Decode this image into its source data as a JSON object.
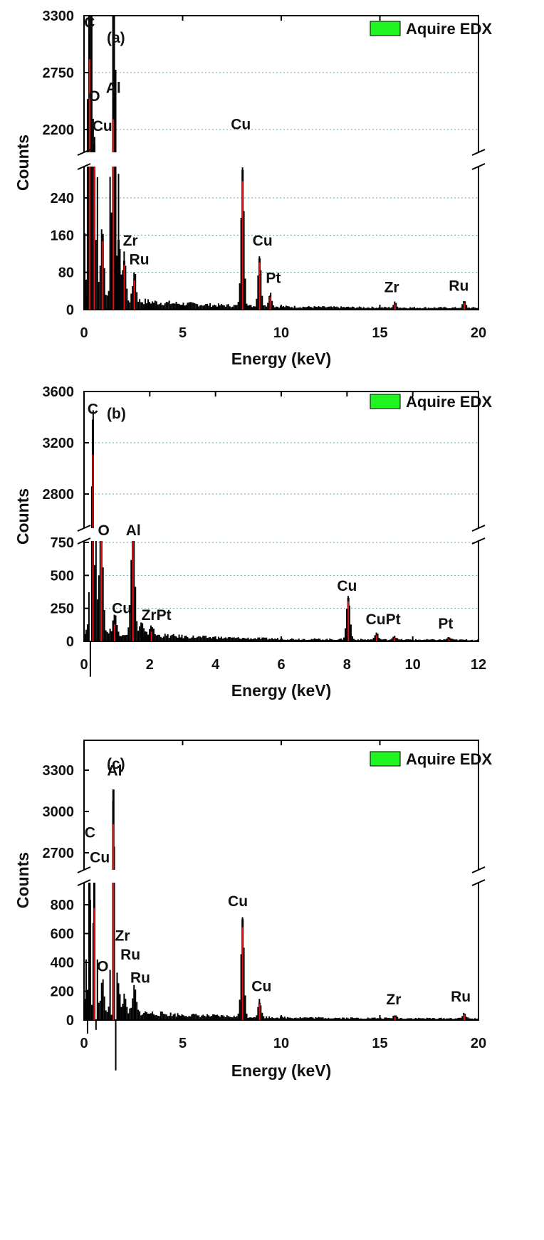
{
  "chart_data": [
    {
      "type": "bar",
      "panel_label": "(a)",
      "legend": [
        "Aquire EDX"
      ],
      "xlabel": "Energy (keV)",
      "ylabel": "Counts",
      "xlim": [
        0,
        20
      ],
      "xticks": [
        0,
        5,
        10,
        15,
        20
      ],
      "ylim_lower": [
        0,
        310
      ],
      "yticks_lower": [
        0,
        80,
        160,
        240
      ],
      "ylim_upper": [
        1950,
        3300
      ],
      "yticks_upper": [
        2200,
        2750,
        3300
      ],
      "axis_break": true,
      "grid": "dotted horizontal",
      "series": [
        {
          "name": "Aquire EDX",
          "peaks": [
            {
              "x": 0.18,
              "y": 600
            },
            {
              "x": 0.28,
              "y": 3130
            },
            {
              "x": 0.32,
              "y": 2800
            },
            {
              "x": 0.52,
              "y": 2060
            },
            {
              "x": 0.93,
              "y": 160
            },
            {
              "x": 1.49,
              "y": 2500
            },
            {
              "x": 1.56,
              "y": 2300
            },
            {
              "x": 1.75,
              "y": 150
            },
            {
              "x": 2.04,
              "y": 105
            },
            {
              "x": 2.56,
              "y": 68
            },
            {
              "x": 8.04,
              "y": 300
            },
            {
              "x": 8.9,
              "y": 110
            },
            {
              "x": 9.44,
              "y": 30
            },
            {
              "x": 15.77,
              "y": 12
            },
            {
              "x": 19.28,
              "y": 15
            }
          ],
          "markers": [
            0.28,
            0.52,
            0.93,
            1.49,
            2.04,
            2.56,
            8.04,
            8.9,
            9.44,
            15.77,
            19.28
          ]
        }
      ],
      "annotations": [
        {
          "text": "C",
          "x": 0.28,
          "y": 3130
        },
        {
          "text": "O",
          "x": 0.52,
          "y": 2420
        },
        {
          "text": "Cu",
          "x": 0.93,
          "y": 2130
        },
        {
          "text": "Al",
          "x": 1.49,
          "y": 2500
        },
        {
          "text": "Zr",
          "x": 2.35,
          "y": 125
        },
        {
          "text": "Ru",
          "x": 2.8,
          "y": 85
        },
        {
          "text": "Cu",
          "x": 7.95,
          "y": 2150
        },
        {
          "text": "Cu",
          "x": 9.05,
          "y": 125
        },
        {
          "text": "Pt",
          "x": 9.6,
          "y": 45
        },
        {
          "text": "Zr",
          "x": 15.6,
          "y": 25
        },
        {
          "text": "Ru",
          "x": 19.0,
          "y": 28
        }
      ]
    },
    {
      "type": "bar",
      "panel_label": "(b)",
      "legend": [
        "Aquire EDX"
      ],
      "xlabel": "Energy (keV)",
      "ylabel": "Counts",
      "xlim": [
        0,
        12
      ],
      "xticks": [
        0,
        2,
        4,
        6,
        8,
        10,
        12
      ],
      "ylim_lower": [
        0,
        900
      ],
      "yticks_lower": [
        0,
        250,
        500,
        750
      ],
      "ylim_upper": [
        2550,
        3600
      ],
      "yticks_upper": [
        2800,
        3200,
        3600
      ],
      "axis_break": true,
      "grid": "dotted horizontal",
      "series": [
        {
          "name": "Aquire EDX",
          "peaks": [
            {
              "x": 0.27,
              "y": 3380
            },
            {
              "x": 0.52,
              "y": 850
            },
            {
              "x": 0.93,
              "y": 140
            },
            {
              "x": 1.49,
              "y": 880
            },
            {
              "x": 1.75,
              "y": 85
            },
            {
              "x": 2.05,
              "y": 80
            },
            {
              "x": 8.04,
              "y": 330
            },
            {
              "x": 8.9,
              "y": 50
            },
            {
              "x": 9.44,
              "y": 30
            },
            {
              "x": 11.1,
              "y": 20
            }
          ],
          "markers": [
            0.27,
            0.52,
            0.93,
            1.49,
            2.05,
            8.04,
            8.9,
            9.44,
            11.1
          ]
        }
      ],
      "annotations": [
        {
          "text": "C",
          "x": 0.27,
          "y": 3380
        },
        {
          "text": "O",
          "x": 0.6,
          "y": 880
        },
        {
          "text": "Al",
          "x": 1.5,
          "y": 880
        },
        {
          "text": "Cu",
          "x": 1.15,
          "y": 170
        },
        {
          "text": "ZrPt",
          "x": 2.2,
          "y": 120
        },
        {
          "text": "Cu",
          "x": 8.0,
          "y": 340
        },
        {
          "text": "CuPt",
          "x": 9.1,
          "y": 85
        },
        {
          "text": "Pt",
          "x": 11.0,
          "y": 55
        }
      ]
    },
    {
      "type": "bar",
      "panel_label": "(c)",
      "legend": [
        "Aquire EDX"
      ],
      "xlabel": "Energy (keV)",
      "ylabel": "Counts",
      "xlim": [
        0,
        20
      ],
      "xticks": [
        0,
        5,
        10,
        15,
        20
      ],
      "ylim_lower": [
        0,
        880
      ],
      "yticks_lower": [
        0,
        200,
        400,
        600,
        800
      ],
      "ylim_upper": [
        2550,
        3400
      ],
      "yticks_upper": [
        2700,
        3000,
        3300
      ],
      "axis_break": true,
      "grid": "none",
      "series": [
        {
          "name": "Aquire EDX",
          "peaks": [
            {
              "x": 0.18,
              "y": 210
            },
            {
              "x": 0.28,
              "y": 2500
            },
            {
              "x": 0.52,
              "y": 2500
            },
            {
              "x": 0.93,
              "y": 200
            },
            {
              "x": 1.49,
              "y": 3160
            },
            {
              "x": 1.75,
              "y": 170
            },
            {
              "x": 2.04,
              "y": 100
            },
            {
              "x": 2.56,
              "y": 185
            },
            {
              "x": 8.04,
              "y": 700
            },
            {
              "x": 8.9,
              "y": 120
            },
            {
              "x": 15.77,
              "y": 25
            },
            {
              "x": 19.28,
              "y": 40
            }
          ],
          "markers": [
            0.52,
            1.49,
            8.04,
            8.9,
            15.77,
            19.28
          ]
        }
      ],
      "annotations": [
        {
          "text": "(c)",
          "x": 0.65,
          "y": 3310
        },
        {
          "text": "Al",
          "x": 1.55,
          "y": 3220
        },
        {
          "text": "C",
          "x": 0.3,
          "y": 2770
        },
        {
          "text": "Cu",
          "x": 0.8,
          "y": 2590
        },
        {
          "text": "Zr",
          "x": 1.95,
          "y": 510
        },
        {
          "text": "Ru",
          "x": 2.35,
          "y": 380
        },
        {
          "text": "O",
          "x": 0.95,
          "y": 300
        },
        {
          "text": "Ru",
          "x": 2.85,
          "y": 220
        },
        {
          "text": "Cu",
          "x": 7.8,
          "y": 750
        },
        {
          "text": "Cu",
          "x": 9.0,
          "y": 160
        },
        {
          "text": "Zr",
          "x": 15.7,
          "y": 70
        },
        {
          "text": "Ru",
          "x": 19.1,
          "y": 90
        }
      ]
    }
  ],
  "colors": {
    "spectrum": "#000000",
    "marker": "#e21010",
    "legend_swatch": "#21f521",
    "grid": "#6aa9a9"
  }
}
